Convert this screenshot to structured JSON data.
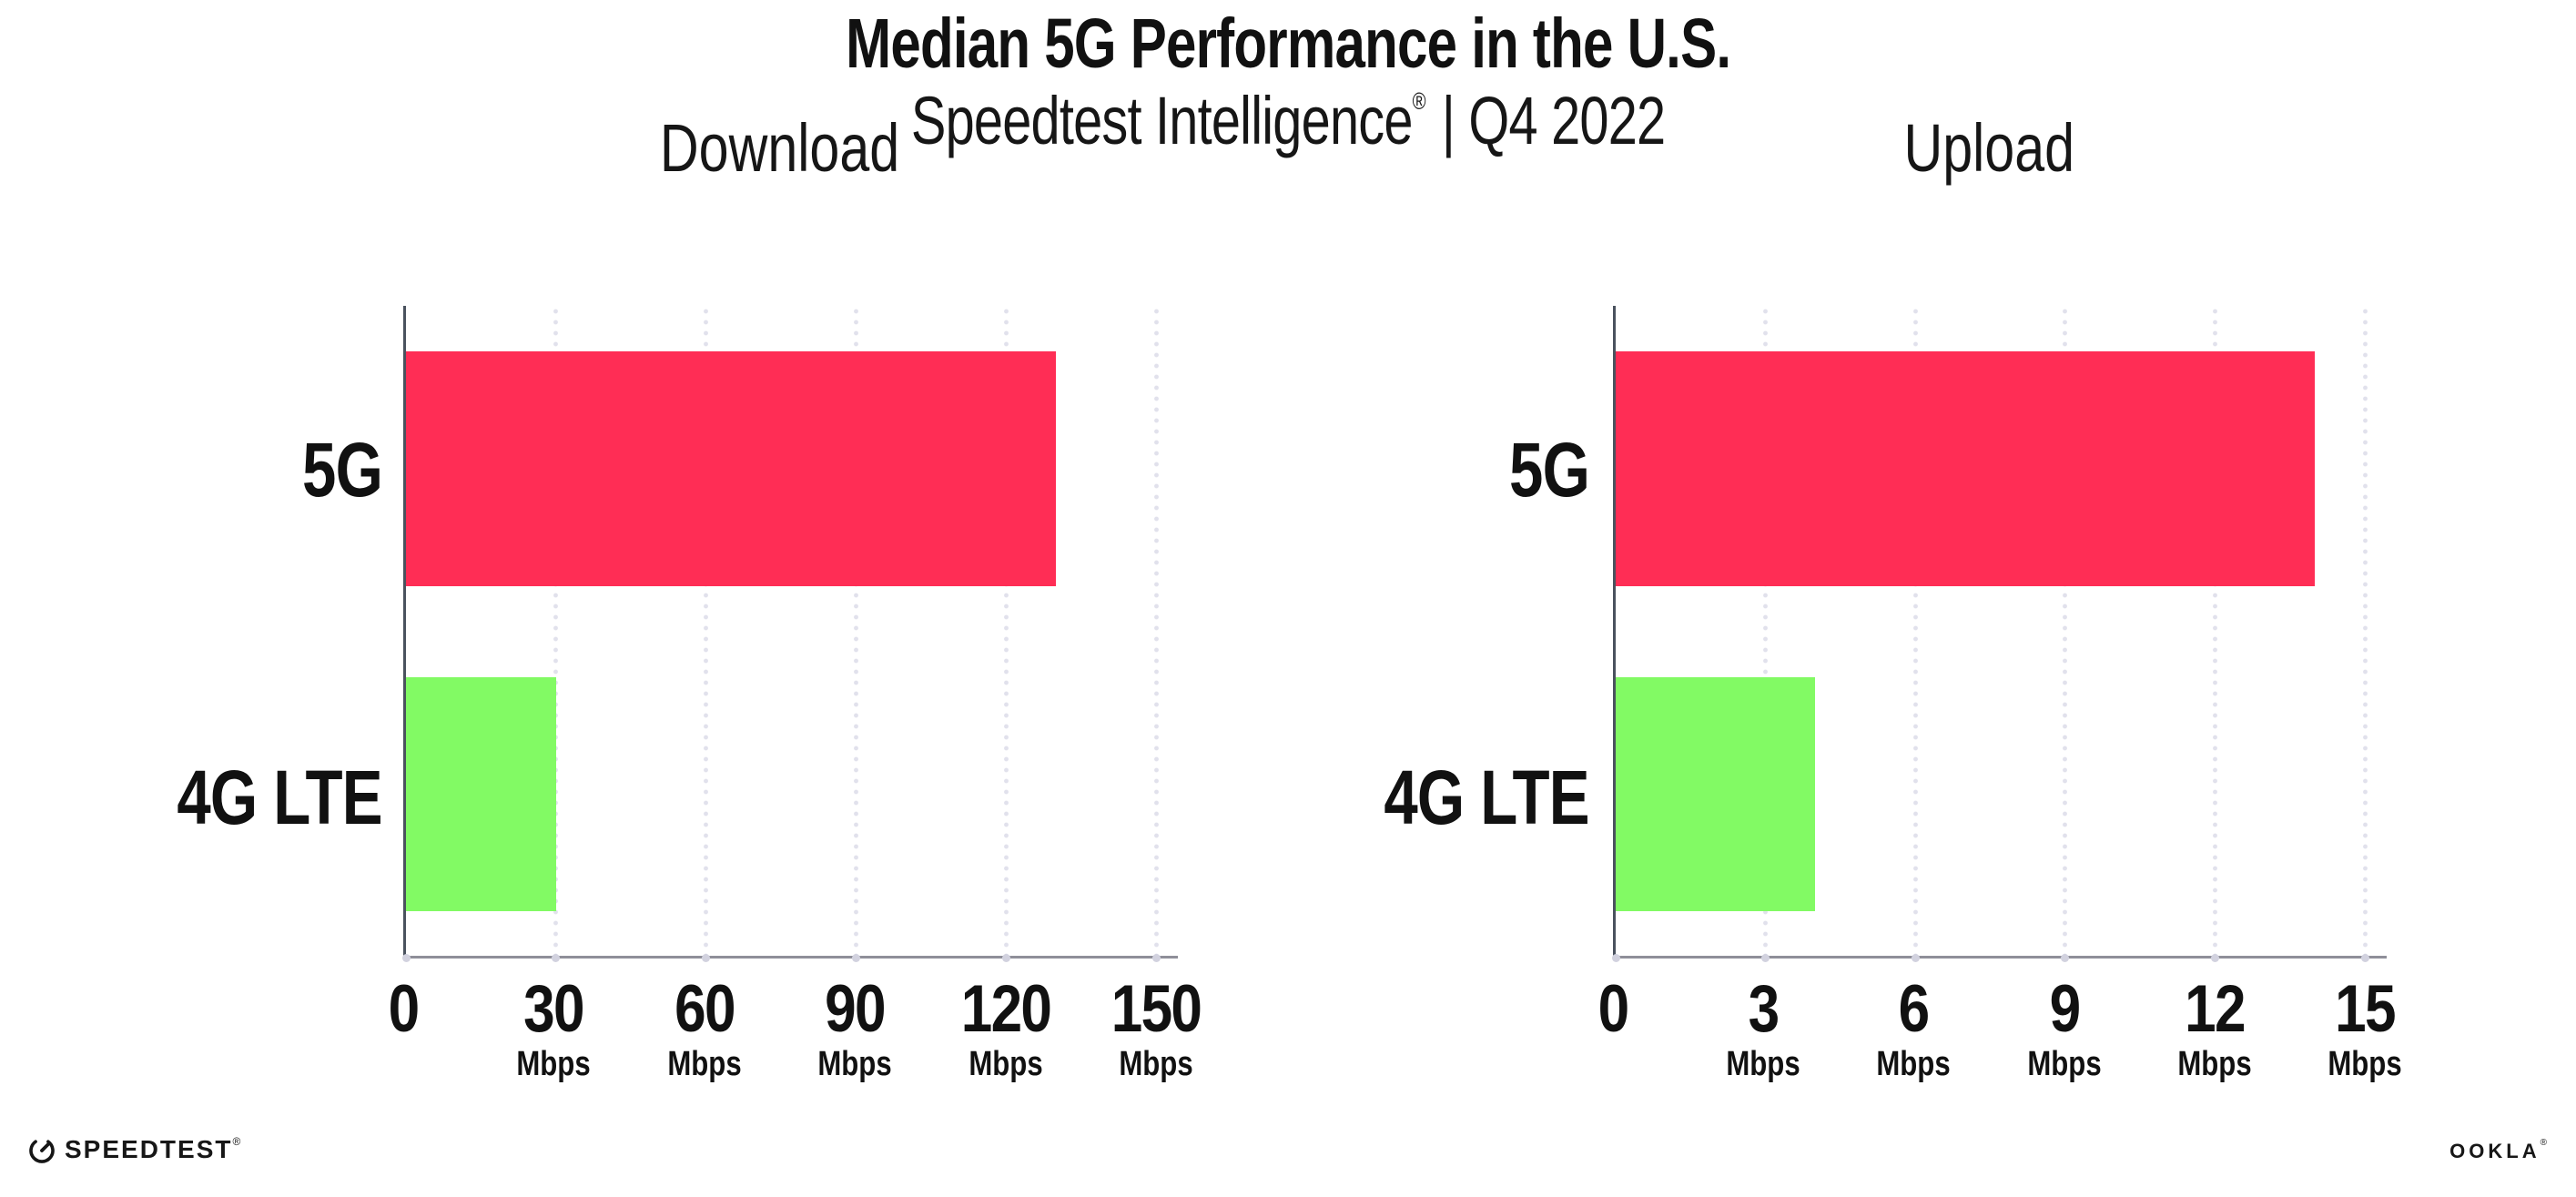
{
  "header": {
    "title": "Median 5G Performance in the U.S.",
    "subtitle_brand": "Speedtest Intelligence",
    "subtitle_registered": "®",
    "subtitle_rest": "| Q4 2022"
  },
  "chart_data": [
    {
      "type": "bar",
      "orientation": "horizontal",
      "title": "Download",
      "categories": [
        "5G",
        "4G LTE"
      ],
      "values": [
        130,
        30
      ],
      "unit": "Mbps",
      "xlim": [
        0,
        150
      ],
      "ticks": [
        0,
        30,
        60,
        90,
        120,
        150
      ],
      "tick_unit_suffix": "Mbps",
      "grid": "dotted vertical gridlines",
      "legend": "none",
      "bar_colors": [
        "#ff2d55",
        "#82fa64"
      ]
    },
    {
      "type": "bar",
      "orientation": "horizontal",
      "title": "Upload",
      "categories": [
        "5G",
        "4G LTE"
      ],
      "values": [
        14,
        4
      ],
      "unit": "Mbps",
      "xlim": [
        0,
        15
      ],
      "ticks": [
        0,
        3,
        6,
        9,
        12,
        15
      ],
      "tick_unit_suffix": "Mbps",
      "grid": "dotted vertical gridlines",
      "legend": "none",
      "bar_colors": [
        "#ff2d55",
        "#82fa64"
      ]
    }
  ],
  "footer": {
    "speedtest_logo_text": "SPEEDTEST",
    "speedtest_registered": "®",
    "ookla_logo_text": "OOKLA",
    "ookla_registered": "®"
  },
  "colors": {
    "bar_5g": "#ff2d55",
    "bar_4g_lte": "#82fa64",
    "axis_vertical": "#4a525e",
    "axis_horizontal": "#8f8f99",
    "gridline_dot": "#e1e1ec",
    "text": "#111111",
    "background": "#ffffff"
  }
}
